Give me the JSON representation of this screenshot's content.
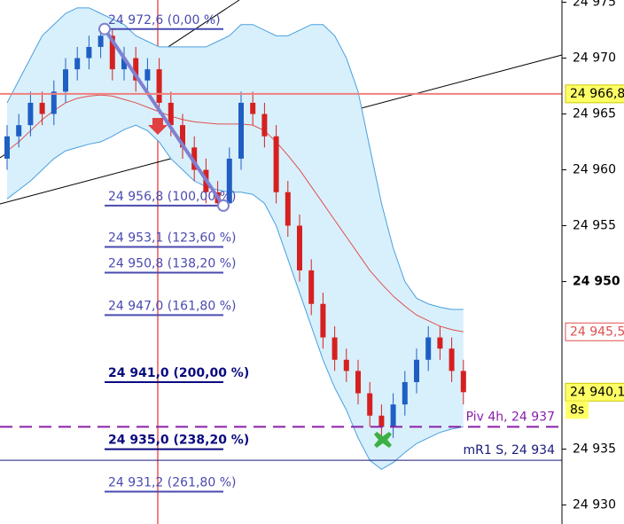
{
  "chart_data": {
    "type": "candlestick",
    "ylim": [
      24928.3,
      24975.2
    ],
    "yticks": [
      {
        "value": 24975,
        "label": "24 975"
      },
      {
        "value": 24970,
        "label": "24 970"
      },
      {
        "value": 24965,
        "label": "24 965"
      },
      {
        "value": 24960,
        "label": "24 960"
      },
      {
        "value": 24955,
        "label": "24 955"
      },
      {
        "value": 24950,
        "label": "24 950",
        "bold": true
      },
      {
        "value": 24935,
        "label": "24 935"
      },
      {
        "value": 24930,
        "label": "24 930"
      }
    ],
    "series": [
      {
        "up_color": "#1f5fc4",
        "down_color": "#d62020",
        "open": [
          24961,
          24963,
          24964,
          24966,
          24965,
          24967,
          24969,
          24970,
          24971,
          24972,
          24969,
          24970,
          24968,
          24969,
          24966,
          24964,
          24962,
          24960,
          24958,
          24957,
          24961,
          24966,
          24965,
          24963,
          24958,
          24955,
          24951,
          24948,
          24945,
          24943,
          24942,
          24940,
          24938,
          24937,
          24939,
          24941,
          24943,
          24945,
          24944,
          24942
        ],
        "high": [
          24964,
          24965,
          24967,
          24967,
          24968,
          24970,
          24971,
          24972,
          24972.4,
          24972.6,
          24971,
          24971,
          24970,
          24970,
          24967,
          24965,
          24963,
          24961,
          24959,
          24962,
          24967,
          24967,
          24966,
          24964,
          24959,
          24956,
          24952,
          24949,
          24946,
          24944,
          24943,
          24941,
          24939,
          24940,
          24942,
          24944,
          24946,
          24946,
          24945,
          24943
        ],
        "low": [
          24960,
          24962,
          24963,
          24964,
          24964,
          24966,
          24968,
          24969,
          24970,
          24968,
          24968,
          24967,
          24967,
          24965,
          24963,
          24961,
          24959,
          24957,
          24956.8,
          24957,
          24960,
          24964,
          24962,
          24957,
          24954,
          24950,
          24947,
          24944,
          24942,
          24941,
          24939,
          24937,
          24936,
          24936,
          24938,
          24940,
          24942,
          24943,
          24941,
          24939
        ],
        "close": [
          24963,
          24964,
          24966,
          24965,
          24967,
          24969,
          24970,
          24971,
          24972,
          24969,
          24970,
          24968,
          24969,
          24966,
          24964,
          24962,
          24960,
          24958,
          24957,
          24961,
          24966,
          24965,
          24963,
          24958,
          24955,
          24951,
          24948,
          24945,
          24943,
          24942,
          24940,
          24938,
          24937,
          24939,
          24941,
          24943,
          24945,
          24944,
          24942,
          24940.1
        ]
      }
    ],
    "bands": {
      "fill": "#d8f0fb",
      "edge_color": "#4a9fe0",
      "middle_color": "#e05050",
      "upper": [
        24966,
        24968,
        24970,
        24972,
        24973,
        24974,
        24974.5,
        24974.5,
        24974,
        24973.5,
        24973,
        24972,
        24971.5,
        24971,
        24971,
        24971,
        24971,
        24971,
        24971.5,
        24972,
        24973,
        24973,
        24972.5,
        24972,
        24972,
        24972.5,
        24973,
        24973,
        24972,
        24970,
        24967,
        24962,
        24957,
        24953,
        24950,
        24948.5,
        24948,
        24947.7,
        24947.5,
        24947.5
      ],
      "middle": [
        24961.7,
        24962.5,
        24963.5,
        24964.5,
        24965.3,
        24966,
        24966.4,
        24966.6,
        24966.7,
        24966.6,
        24966.3,
        24966,
        24965.6,
        24965.2,
        24964.8,
        24964.5,
        24964.3,
        24964.2,
        24964.1,
        24964.1,
        24964.1,
        24964,
        24963.5,
        24962.5,
        24961.3,
        24960,
        24958.5,
        24957,
        24955.5,
        24954,
        24952.5,
        24951,
        24949.8,
        24948.7,
        24947.8,
        24947,
        24946.5,
        24946,
        24945.7,
        24945.5
      ],
      "lower": [
        24957.4,
        24958.2,
        24959,
        24960,
        24961,
        24961.7,
        24962,
        24962.3,
        24962.5,
        24963,
        24963.6,
        24964,
        24963.5,
        24962.5,
        24961,
        24960,
        24959,
        24958.5,
        24958.2,
        24958,
        24958,
        24957.8,
        24957,
        24955,
        24952,
        24949,
        24946,
        24943,
        24940.5,
        24938.5,
        24936,
        24934,
        24933.2,
        24933.8,
        24934.7,
        24935.5,
        24936,
        24936.5,
        24936.8,
        24937
      ]
    },
    "fib": {
      "color": "#4a4ab0",
      "bold_color": "#0a0a80",
      "levels": [
        {
          "value": 24972.6,
          "label": "24 972,6 (0,00 %)"
        },
        {
          "value": 24956.8,
          "label": "24 956,8 (100,00 %)"
        },
        {
          "value": 24953.1,
          "label": "24 953,1 (123,60 %)"
        },
        {
          "value": 24950.8,
          "label": "24 950,8 (138,20 %)"
        },
        {
          "value": 24947.0,
          "label": "24 947,0 (161,80 %)"
        },
        {
          "value": 24941.0,
          "label": "24 941,0 (200,00 %)",
          "bold": true
        },
        {
          "value": 24935.0,
          "label": "24 935,0 (238,20 %)",
          "bold": true
        },
        {
          "value": 24931.2,
          "label": "24 931,2 (261,80 %)"
        }
      ]
    },
    "lines": [
      {
        "value": 24937,
        "label": "Piv 4h, 24 937",
        "color": "#8a1fa8",
        "dashed": true
      },
      {
        "value": 24934,
        "label": "mR1 S, 24 934",
        "color": "#1a1a7a",
        "dashed": false
      }
    ],
    "price_markers": [
      {
        "value": 24966.8,
        "label": "24 966,8",
        "color": "#000000",
        "background": "#ffff66",
        "line_color": "#f08080"
      },
      {
        "value": 24945.5,
        "label": "24 945,5",
        "color": "#e05050",
        "background": "#ffffff"
      },
      {
        "value": 24940.1,
        "label": "24 940,1",
        "color": "#000000",
        "background": "#ffff66"
      }
    ],
    "countdown": "8s"
  }
}
